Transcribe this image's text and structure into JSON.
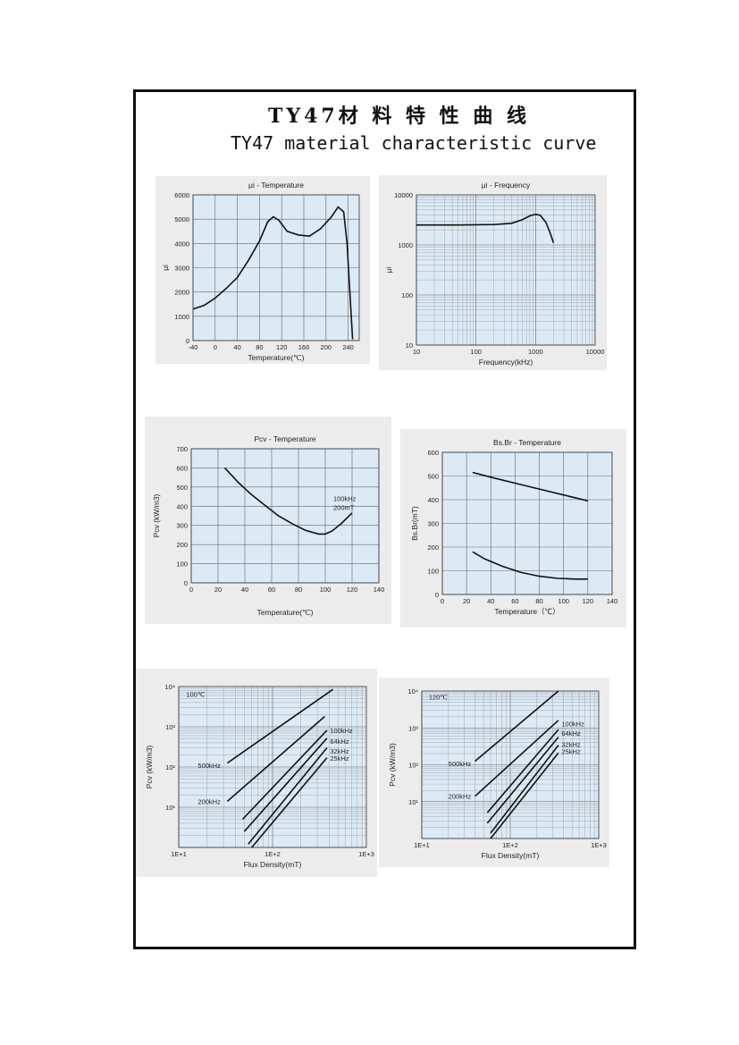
{
  "header": {
    "title_cn": "TY47材 料 特 性 曲 线",
    "title_en": "TY47 material characteristic curve"
  },
  "chart_data": [
    {
      "id": "ui-temp",
      "type": "line",
      "title": "μi - Temperature",
      "xlabel": "Temperature(℃)",
      "ylabel": "μi",
      "xscale": "linear",
      "yscale": "linear",
      "xlim": [
        -40,
        260
      ],
      "ylim": [
        0,
        6000
      ],
      "xticks": [
        -40,
        0,
        40,
        80,
        120,
        160,
        200,
        240
      ],
      "yticks": [
        0,
        1000,
        2000,
        3000,
        4000,
        5000,
        6000
      ],
      "xtick_labels": [
        "-40",
        "0",
        "40",
        "80",
        "120",
        "160",
        "200",
        "240"
      ],
      "ytick_labels": [
        "0",
        "1000",
        "2000",
        "3000",
        "4000",
        "5000",
        "6000"
      ],
      "grid": true,
      "series": [
        {
          "x": [
            -40,
            -20,
            0,
            20,
            40,
            60,
            80,
            95,
            105,
            115,
            130,
            150,
            170,
            190,
            210,
            222,
            232,
            238,
            243,
            248
          ],
          "y": [
            1300,
            1450,
            1750,
            2150,
            2600,
            3300,
            4100,
            4900,
            5100,
            4950,
            4500,
            4350,
            4300,
            4600,
            5100,
            5500,
            5300,
            4000,
            2000,
            50
          ]
        }
      ],
      "annotations": []
    },
    {
      "id": "ui-freq",
      "type": "line",
      "title": "μi - Frequency",
      "xlabel": "Frequency(kHz)",
      "ylabel": "μi",
      "xscale": "log",
      "yscale": "log",
      "xlim": [
        10,
        10000
      ],
      "ylim": [
        10,
        10000
      ],
      "xticks": [
        10,
        100,
        1000,
        10000
      ],
      "yticks": [
        10,
        100,
        1000,
        10000
      ],
      "xtick_labels": [
        "10",
        "100",
        "1000",
        "10000"
      ],
      "ytick_labels": [
        "10",
        "100",
        "1000",
        "10000"
      ],
      "grid": true,
      "series": [
        {
          "x": [
            10,
            50,
            200,
            400,
            600,
            800,
            1000,
            1200,
            1500,
            1800,
            2000
          ],
          "y": [
            2500,
            2500,
            2550,
            2700,
            3200,
            3800,
            4100,
            3900,
            2800,
            1600,
            1100
          ]
        }
      ],
      "annotations": []
    },
    {
      "id": "pcv-temp",
      "type": "line",
      "title": "Pcv - Temperature",
      "xlabel": "Temperature(℃)",
      "ylabel": "Pcv (kW/m3)",
      "xscale": "linear",
      "yscale": "linear",
      "xlim": [
        0,
        140
      ],
      "ylim": [
        0,
        700
      ],
      "xticks": [
        0,
        20,
        40,
        60,
        80,
        100,
        120,
        140
      ],
      "yticks": [
        0,
        100,
        200,
        300,
        400,
        500,
        600,
        700
      ],
      "xtick_labels": [
        "0",
        "20",
        "40",
        "60",
        "80",
        "100",
        "120",
        "140"
      ],
      "ytick_labels": [
        "0",
        "100",
        "200",
        "300",
        "400",
        "500",
        "600",
        "700"
      ],
      "grid": true,
      "series": [
        {
          "x": [
            25,
            35,
            45,
            55,
            65,
            75,
            85,
            95,
            100,
            105,
            112,
            120
          ],
          "y": [
            600,
            525,
            460,
            405,
            350,
            310,
            275,
            255,
            255,
            270,
            310,
            365
          ]
        }
      ],
      "annotations": [
        {
          "text": "100kHz",
          "x": 106,
          "y": 442
        },
        {
          "text": "200mT",
          "x": 106,
          "y": 395
        }
      ]
    },
    {
      "id": "bsbr-temp",
      "type": "line",
      "title": "Bs.Br - Temperature",
      "xlabel": "Temperature（℃）",
      "ylabel": "Bs.Br(mT)",
      "xscale": "linear",
      "yscale": "linear",
      "xlim": [
        0,
        140
      ],
      "ylim": [
        0,
        600
      ],
      "xticks": [
        0,
        20,
        40,
        60,
        80,
        100,
        120,
        140
      ],
      "yticks": [
        0,
        100,
        200,
        300,
        400,
        500,
        600
      ],
      "xtick_labels": [
        "0",
        "20",
        "40",
        "60",
        "80",
        "100",
        "120",
        "140"
      ],
      "ytick_labels": [
        "0",
        "100",
        "200",
        "300",
        "400",
        "500",
        "600"
      ],
      "grid": true,
      "series": [
        {
          "x": [
            25,
            40,
            60,
            80,
            100,
            120
          ],
          "y": [
            515,
            495,
            470,
            445,
            420,
            395
          ]
        },
        {
          "x": [
            25,
            35,
            50,
            65,
            80,
            95,
            110,
            120
          ],
          "y": [
            180,
            150,
            118,
            93,
            77,
            68,
            65,
            65
          ]
        }
      ],
      "annotations": []
    },
    {
      "id": "pcv-flux-100",
      "type": "line",
      "title": "",
      "xlabel": "Flux Density(mT)",
      "ylabel": "Pcv (kW/m3)",
      "xscale": "log",
      "yscale": "log",
      "xlim": [
        10,
        1000
      ],
      "ylim": [
        1,
        10000
      ],
      "xticks": [
        10,
        100,
        1000
      ],
      "yticks": [
        10,
        100,
        1000,
        10000
      ],
      "xtick_labels": [
        "1E+1",
        "1E+2",
        "1E+3"
      ],
      "ytick_labels": [
        "10¹",
        "10²",
        "10³",
        "10⁴"
      ],
      "grid": true,
      "series": [
        {
          "name": "500kHz",
          "x": [
            33,
            440
          ],
          "y": [
            125,
            8500
          ]
        },
        {
          "name": "200kHz",
          "x": [
            33,
            360
          ],
          "y": [
            14,
            1800
          ]
        },
        {
          "name": "100kHz",
          "x": [
            48,
            380
          ],
          "y": [
            5,
            820
          ]
        },
        {
          "name": "64kHz",
          "x": [
            50,
            380
          ],
          "y": [
            2.5,
            520
          ]
        },
        {
          "name": "32kHz",
          "x": [
            55,
            380
          ],
          "y": [
            1.2,
            300
          ]
        },
        {
          "name": "25kHz",
          "x": [
            60,
            380
          ],
          "y": [
            1,
            170
          ]
        }
      ],
      "annotations": [
        {
          "text": "100℃",
          "x": 12,
          "y": 6500
        },
        {
          "text": "500kHz",
          "x": 16,
          "y": 110
        },
        {
          "text": "200kHz",
          "x": 16,
          "y": 14
        },
        {
          "text": "100kHz",
          "x": 410,
          "y": 820
        },
        {
          "text": "64kHz",
          "x": 410,
          "y": 440
        },
        {
          "text": "32kHz",
          "x": 410,
          "y": 250
        },
        {
          "text": "25kHz",
          "x": 410,
          "y": 165
        }
      ]
    },
    {
      "id": "pcv-flux-120",
      "type": "line",
      "title": "",
      "xlabel": "Flux Density(mT)",
      "ylabel": "Pcv (kW/m3)",
      "xscale": "log",
      "yscale": "log",
      "xlim": [
        10,
        1000
      ],
      "ylim": [
        1,
        10000
      ],
      "xticks": [
        10,
        100,
        1000
      ],
      "yticks": [
        10,
        100,
        1000,
        10000
      ],
      "xtick_labels": [
        "1E+1",
        "1E+2",
        "1E+3"
      ],
      "ytick_labels": [
        "10¹",
        "10²",
        "10³",
        "10⁴"
      ],
      "grid": true,
      "series": [
        {
          "name": "500kHz",
          "x": [
            40,
            350
          ],
          "y": [
            125,
            10000
          ]
        },
        {
          "name": "200kHz",
          "x": [
            40,
            350
          ],
          "y": [
            14,
            1600
          ]
        },
        {
          "name": "100kHz",
          "x": [
            55,
            350
          ],
          "y": [
            5,
            900
          ]
        },
        {
          "name": "64kHz",
          "x": [
            55,
            350
          ],
          "y": [
            2.6,
            560
          ]
        },
        {
          "name": "32kHz",
          "x": [
            60,
            350
          ],
          "y": [
            1.4,
            340
          ]
        },
        {
          "name": "25kHz",
          "x": [
            60,
            350
          ],
          "y": [
            1,
            210
          ]
        }
      ],
      "annotations": [
        {
          "text": "120℃",
          "x": 12,
          "y": 7000
        },
        {
          "text": "500kHz",
          "x": 20,
          "y": 110
        },
        {
          "text": "200kHz",
          "x": 20,
          "y": 14
        },
        {
          "text": "100kHz",
          "x": 380,
          "y": 1300
        },
        {
          "text": "64kHz",
          "x": 380,
          "y": 720
        },
        {
          "text": "32kHz",
          "x": 380,
          "y": 360
        },
        {
          "text": "25kHz",
          "x": 380,
          "y": 230
        }
      ]
    }
  ]
}
